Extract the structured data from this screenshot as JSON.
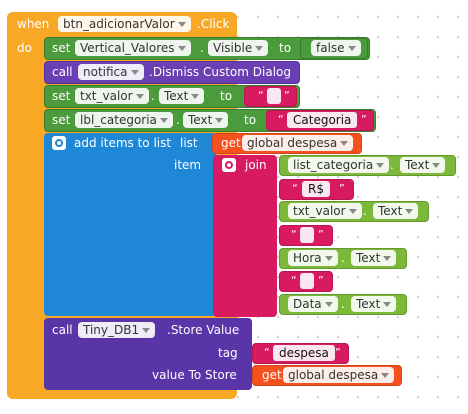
{
  "event": {
    "when": "when",
    "component": "btn_adicionarValor",
    "event_name": ".Click",
    "do": "do"
  },
  "stmt1": {
    "set": "set",
    "component": "Vertical_Valores",
    "property": "Visible",
    "to": "to",
    "value": "false"
  },
  "stmt2": {
    "call": "call",
    "component": "notifica",
    "method": ".Dismiss Custom Dialog"
  },
  "stmt3": {
    "set": "set",
    "component": "txt_valor",
    "property": "Text",
    "to": "to",
    "open_quote": "“",
    "close_quote": "”",
    "value": ""
  },
  "stmt4": {
    "set": "set",
    "component": "lbl_categoria",
    "property": "Text",
    "to": "to",
    "open_quote": "“",
    "close_quote": "”",
    "value": "Categoria"
  },
  "add_items": {
    "label": "add items to list",
    "list_label": "list",
    "item_label": "item",
    "get": "get",
    "list_var": "global despesa",
    "join": "join",
    "parts": [
      {
        "component": "list_categoria",
        "property": "Text"
      },
      {
        "text": "R$"
      },
      {
        "component": "txt_valor",
        "property": "Text"
      },
      {
        "text": ""
      },
      {
        "component": "Hora",
        "property": "Text"
      },
      {
        "text": ""
      },
      {
        "component": "Data",
        "property": "Text"
      }
    ],
    "open_quote": "“",
    "close_quote": "”",
    "dot": "."
  },
  "store": {
    "call": "call",
    "component": "Tiny_DB1",
    "method": ".Store Value",
    "tag_label": "tag",
    "tag_value": "despesa",
    "value_label": "value To Store",
    "get": "get",
    "value_var": "global despesa"
  },
  "colors": {
    "event": "#f9a825",
    "component_set": "#4b9a3c",
    "component_getter": "#7cb83a",
    "call": "#6a3fb4",
    "list": "#1e88d7",
    "text": "#d81b60",
    "variable": "#f4511e"
  }
}
